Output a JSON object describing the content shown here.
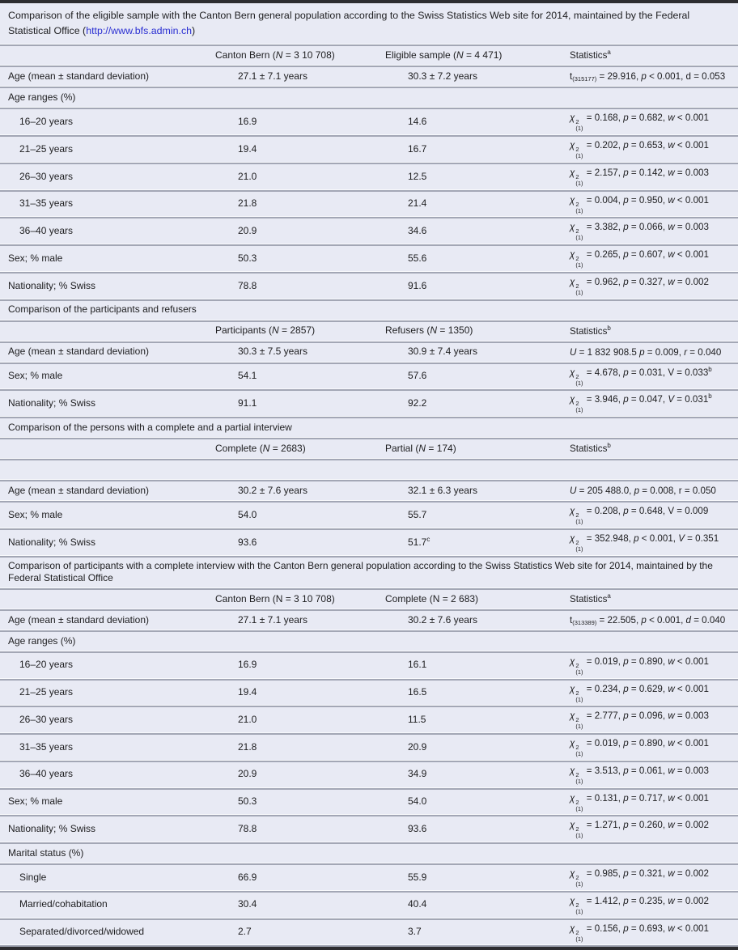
{
  "colors": {
    "row_background": "#e8eaf4",
    "separator": "#a3a7b5",
    "frame_border": "#2d2d30",
    "text": "#1d1d1f",
    "link": "#2a2fd2"
  },
  "table": {
    "title": [
      "Comparison of the eligible sample with the Canton Bern general population according to the Swiss Statistics Web site for 2014, maintained by the Federal Statistical Office (",
      {
        "t": "http://www.bfs.admin.ch",
        "style": "link"
      },
      ")"
    ],
    "rows": [
      {
        "type": "header",
        "cells": [
          [
            "Canton Bern (",
            {
              "t": "N",
              "style": "i"
            },
            " = 3 10 708)"
          ],
          [
            "Eligible sample (",
            {
              "t": "N",
              "style": "i"
            },
            " = 4 471)"
          ],
          [
            "Statistics",
            {
              "t": "a",
              "style": "sup"
            }
          ]
        ]
      },
      {
        "type": "data",
        "indent": false,
        "label": "Age (mean ± standard deviation)",
        "col2": "27.1 ± 7.1 years",
        "col3": "30.3 ± 7.2 years",
        "stat": {
          "var": "t",
          "df": "(315177)",
          "value": "29.916",
          "p_rel": "<",
          "p": "0.001",
          "eff_var": "d",
          "eff_rel": "=",
          "eff": "0.053",
          "eff_italic": false
        }
      },
      {
        "type": "section",
        "label": "Age ranges (%)"
      },
      {
        "type": "data",
        "indent": true,
        "label": "16–20 years",
        "col2": "16.9",
        "col3": "14.6",
        "stat": {
          "var": "chi",
          "value": "0.168",
          "p_rel": "=",
          "p": "0.682",
          "eff_var": "w",
          "eff_rel": "<",
          "eff": "0.001"
        }
      },
      {
        "type": "data",
        "indent": true,
        "label": "21–25 years",
        "col2": "19.4",
        "col3": "16.7",
        "stat": {
          "var": "chi",
          "value": "0.202",
          "p_rel": "=",
          "p": "0.653",
          "eff_var": "w",
          "eff_rel": "<",
          "eff": "0.001"
        }
      },
      {
        "type": "data",
        "indent": true,
        "label": "26–30 years",
        "col2": "21.0",
        "col3": "12.5",
        "stat": {
          "var": "chi",
          "value": "2.157",
          "p_rel": "=",
          "p": "0.142",
          "eff_var": "w",
          "eff_rel": "=",
          "eff": "0.003"
        }
      },
      {
        "type": "data",
        "indent": true,
        "label": "31–35 years",
        "col2": "21.8",
        "col3": "21.4",
        "stat": {
          "var": "chi",
          "value": "0.004",
          "p_rel": "=",
          "p": "0.950",
          "eff_var": "w",
          "eff_rel": "<",
          "eff": "0.001"
        }
      },
      {
        "type": "data",
        "indent": true,
        "label": "36–40 years",
        "col2": "20.9",
        "col3": "34.6",
        "stat": {
          "var": "chi",
          "value": "3.382",
          "p_rel": "=",
          "p": "0.066",
          "eff_var": "w",
          "eff_rel": "=",
          "eff": "0.003"
        }
      },
      {
        "type": "data",
        "indent": false,
        "label": "Sex; % male",
        "col2": "50.3",
        "col3": "55.6",
        "stat": {
          "var": "chi",
          "value": "0.265",
          "p_rel": "=",
          "p": "0.607",
          "eff_var": "w",
          "eff_rel": "<",
          "eff": "0.001"
        }
      },
      {
        "type": "data",
        "indent": false,
        "label": "Nationality; % Swiss",
        "col2": "78.8",
        "col3": "91.6",
        "stat": {
          "var": "chi",
          "value": "0.962",
          "p_rel": "=",
          "p": "0.327",
          "eff_var": "w",
          "eff_rel": "=",
          "eff": "0.002"
        }
      },
      {
        "type": "banner",
        "text": "Comparison of the participants and refusers"
      },
      {
        "type": "header",
        "cells": [
          [
            "Participants (",
            {
              "t": "N",
              "style": "i"
            },
            " = 2857)"
          ],
          [
            "Refusers (",
            {
              "t": "N",
              "style": "i"
            },
            " = 1350)"
          ],
          [
            "Statistics",
            {
              "t": "b",
              "style": "sup"
            }
          ]
        ]
      },
      {
        "type": "data",
        "indent": false,
        "label": "Age (mean ± standard deviation)",
        "col2": "30.3 ± 7.5 years",
        "col3": "30.9 ± 7.4 years",
        "stat": {
          "var": "U",
          "value": "1 832 908.5",
          "sep": " ",
          "p_rel": "=",
          "p": "0.009",
          "eff_var": "r",
          "eff_rel": "=",
          "eff": "0.040"
        }
      },
      {
        "type": "data",
        "indent": false,
        "label": "Sex; % male",
        "col2": "54.1",
        "col3": "57.6",
        "stat": {
          "var": "chi",
          "value": "4.678",
          "p_rel": "=",
          "p": "0.031",
          "eff_var": "V",
          "eff_rel": "=",
          "eff": "0.033",
          "eff_italic": false,
          "sup": "b"
        }
      },
      {
        "type": "data",
        "indent": false,
        "label": "Nationality; % Swiss",
        "col2": "91.1",
        "col3": "92.2",
        "stat": {
          "var": "chi",
          "value": "3.946",
          "p_rel": "=",
          "p": "0.047",
          "eff_var": "V",
          "eff_rel": "=",
          "eff": "0.031",
          "sup": "b"
        }
      },
      {
        "type": "banner",
        "text": "Comparison of the persons with a complete and a partial interview"
      },
      {
        "type": "header",
        "cells": [
          [
            "Complete (",
            {
              "t": "N",
              "style": "i"
            },
            " = 2683)"
          ],
          [
            "Partial (",
            {
              "t": "N",
              "style": "i"
            },
            " = 174)"
          ],
          [
            "Statistics",
            {
              "t": "b",
              "style": "sup"
            }
          ]
        ]
      },
      {
        "type": "empty"
      },
      {
        "type": "data",
        "indent": false,
        "label": "Age (mean ± standard deviation)",
        "col2": "30.2 ± 7.6 years",
        "col3": "32.1 ± 6.3 years",
        "stat": {
          "var": "U",
          "value": "205 488.0",
          "p_rel": "=",
          "p": "0.008",
          "eff_var": "r",
          "eff_rel": "=",
          "eff": "0.050",
          "eff_italic": false
        }
      },
      {
        "type": "data",
        "indent": false,
        "label": "Sex; % male",
        "col2": "54.0",
        "col3": "55.7",
        "stat": {
          "var": "chi",
          "value": "0.208",
          "p_rel": "=",
          "p": "0.648",
          "eff_var": "V",
          "eff_rel": "=",
          "eff": "0.009",
          "eff_italic": false
        }
      },
      {
        "type": "data",
        "indent": false,
        "label": "Nationality; % Swiss",
        "col2": "93.6",
        "col3": [
          "51.7",
          {
            "t": "c",
            "style": "sup"
          }
        ],
        "stat": {
          "var": "chi",
          "value": "352.948",
          "p_rel": "<",
          "p": "0.001",
          "eff_var": "V",
          "eff_rel": "=",
          "eff": "0.351"
        }
      },
      {
        "type": "banner",
        "text": "Comparison of participants with a complete interview with the Canton Bern general population according to the Swiss Statistics Web site for 2014, maintained by the Federal Statistical Office"
      },
      {
        "type": "header",
        "cells": [
          [
            "Canton Bern (N = 3 10 708)"
          ],
          [
            "Complete (N = 2 683)"
          ],
          [
            "Statistics",
            {
              "t": "a",
              "style": "sup"
            }
          ]
        ]
      },
      {
        "type": "data",
        "indent": false,
        "label": "Age (mean ± standard deviation)",
        "col2": "27.1 ± 7.1 years",
        "col3": "30.2 ± 7.6 years",
        "stat": {
          "var": "t",
          "df": "(313389)",
          "value": "22.505",
          "p_rel": "<",
          "p": "0.001",
          "eff_var": "d",
          "eff_rel": "=",
          "eff": "0.040"
        }
      },
      {
        "type": "section",
        "label": "Age ranges (%)"
      },
      {
        "type": "data",
        "indent": true,
        "label": "16–20 years",
        "col2": "16.9",
        "col3": "16.1",
        "stat": {
          "var": "chi",
          "value": "0.019",
          "p_rel": "=",
          "p": "0.890",
          "eff_var": "w",
          "eff_rel": "<",
          "eff": "0.001"
        }
      },
      {
        "type": "data",
        "indent": true,
        "label": "21–25 years",
        "col2": "19.4",
        "col3": "16.5",
        "stat": {
          "var": "chi",
          "value": "0.234",
          "p_rel": "=",
          "p": "0.629",
          "eff_var": "w",
          "eff_rel": "<",
          "eff": "0.001"
        }
      },
      {
        "type": "data",
        "indent": true,
        "label": "26–30 years",
        "col2": "21.0",
        "col3": "11.5",
        "stat": {
          "var": "chi",
          "value": "2.777",
          "p_rel": "=",
          "p": "0.096",
          "eff_var": "w",
          "eff_rel": "=",
          "eff": "0.003"
        }
      },
      {
        "type": "data",
        "indent": true,
        "label": "31–35 years",
        "col2": "21.8",
        "col3": "20.9",
        "stat": {
          "var": "chi",
          "value": "0.019",
          "p_rel": "=",
          "p": "0.890",
          "eff_var": "w",
          "eff_rel": "<",
          "eff": "0.001"
        }
      },
      {
        "type": "data",
        "indent": true,
        "label": "36–40 years",
        "col2": "20.9",
        "col3": "34.9",
        "stat": {
          "var": "chi",
          "value": "3.513",
          "p_rel": "=",
          "p": "0.061",
          "eff_var": "w",
          "eff_rel": "=",
          "eff": "0.003"
        }
      },
      {
        "type": "data",
        "indent": false,
        "label": "Sex; % male",
        "col2": "50.3",
        "col3": "54.0",
        "stat": {
          "var": "chi",
          "value": "0.131",
          "p_rel": "=",
          "p": "0.717",
          "eff_var": "w",
          "eff_rel": "<",
          "eff": "0.001"
        }
      },
      {
        "type": "data",
        "indent": false,
        "label": "Nationality; % Swiss",
        "col2": "78.8",
        "col3": "93.6",
        "stat": {
          "var": "chi",
          "value": "1.271",
          "p_rel": "=",
          "p": "0.260",
          "eff_var": "w",
          "eff_rel": "=",
          "eff": "0.002"
        }
      },
      {
        "type": "section",
        "label": "Marital status (%)"
      },
      {
        "type": "data",
        "indent": true,
        "label": "Single",
        "col2": "66.9",
        "col3": "55.9",
        "stat": {
          "var": "chi",
          "value": "0.985",
          "p_rel": "=",
          "p": "0.321",
          "eff_var": "w",
          "eff_rel": "=",
          "eff": "0.002"
        }
      },
      {
        "type": "data",
        "indent": true,
        "label": "Married/cohabitation",
        "col2": "30.4",
        "col3": "40.4",
        "stat": {
          "var": "chi",
          "value": "1.412",
          "p_rel": "=",
          "p": "0.235",
          "eff_var": "w",
          "eff_rel": "=",
          "eff": "0.002"
        }
      },
      {
        "type": "data",
        "indent": true,
        "label": "Separated/divorced/widowed",
        "col2": "2.7",
        "col3": "3.7",
        "stat": {
          "var": "chi",
          "value": "0.156",
          "p_rel": "=",
          "p": "0.693",
          "eff_var": "w",
          "eff_rel": "<",
          "eff": "0.001"
        }
      }
    ]
  }
}
